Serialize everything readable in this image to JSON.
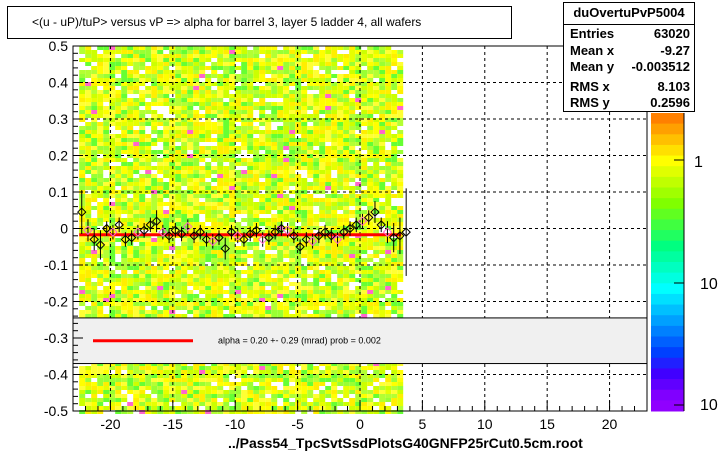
{
  "title": "<(u - uP)/tuP> versus  vP => alpha for barrel 3, layer 5 ladder 4, all wafers",
  "stats": {
    "name": "duOvertuPvP5004",
    "rows": [
      {
        "key": "Entries",
        "value": "63020"
      },
      {
        "key": "Mean x",
        "value": "-9.27"
      },
      {
        "key": "Mean y",
        "value": "-0.003512"
      },
      {
        "key": "RMS x",
        "value": "8.103"
      },
      {
        "key": "RMS y",
        "value": "0.2596"
      }
    ]
  },
  "footer": "../Pass54_TpcSvtSsdPlotsG40GNFP25rCut0.5cm.root",
  "colors": {
    "fit": "#ff0000",
    "profile": "#000000",
    "accent_pink": "#ff66cc"
  },
  "z_axis": {
    "labels": [
      "1",
      "10",
      "10"
    ],
    "scale": "log"
  },
  "chart_data": {
    "type": "heatmap",
    "title": "<(u - uP)/tuP> versus  vP => alpha for barrel 3, layer 5 ladder 4, all wafers",
    "xlabel": "",
    "ylabel": "",
    "xlim": [
      -23,
      23
    ],
    "ylim": [
      -0.5,
      0.5
    ],
    "x_ticks": [
      -20,
      -15,
      -10,
      -5,
      0,
      5,
      10,
      15,
      20
    ],
    "y_ticks": [
      -0.5,
      -0.4,
      -0.3,
      -0.2,
      -0.1,
      0,
      0.1,
      0.2,
      0.3,
      0.4,
      0.5
    ],
    "grid": true,
    "filled_x_range": [
      -22.5,
      3.3
    ],
    "legend": {
      "text": "alpha =     0.20 +-  0.29 (mrad) prob = 0.002",
      "y_range": [
        -0.37,
        -0.245
      ]
    },
    "fit_line": {
      "x": [
        -22.5,
        3.3
      ],
      "y": [
        -0.017,
        -0.017
      ]
    },
    "profile": {
      "x": [
        -22.3,
        -21.8,
        -21.3,
        -20.8,
        -20.3,
        -19.8,
        -19.3,
        -18.8,
        -18.3,
        -17.8,
        -17.3,
        -16.8,
        -16.3,
        -15.8,
        -15.3,
        -14.8,
        -14.3,
        -13.8,
        -13.3,
        -12.8,
        -12.3,
        -11.8,
        -11.3,
        -10.8,
        -10.3,
        -9.8,
        -9.3,
        -8.8,
        -8.3,
        -7.8,
        -7.3,
        -6.8,
        -6.3,
        -5.8,
        -5.3,
        -4.8,
        -4.3,
        -3.8,
        -3.3,
        -2.8,
        -2.3,
        -1.8,
        -1.3,
        -0.8,
        -0.3,
        0.2,
        0.7,
        1.2,
        1.7,
        2.2,
        2.7,
        3.2,
        3.7
      ],
      "y": [
        0.045,
        -0.005,
        -0.03,
        -0.045,
        0.0,
        -0.01,
        0.01,
        -0.03,
        -0.025,
        -0.01,
        -0.005,
        0.01,
        0.02,
        -0.01,
        -0.02,
        -0.005,
        -0.015,
        0.005,
        -0.02,
        -0.01,
        -0.03,
        -0.035,
        -0.025,
        -0.055,
        -0.01,
        -0.02,
        -0.03,
        -0.015,
        -0.005,
        -0.03,
        -0.025,
        -0.01,
        0.0,
        -0.005,
        -0.02,
        -0.05,
        -0.03,
        -0.035,
        -0.02,
        -0.01,
        -0.02,
        -0.03,
        -0.01,
        0.0,
        0.01,
        0.02,
        0.03,
        0.045,
        0.01,
        -0.01,
        -0.025,
        -0.02,
        -0.01
      ],
      "err": [
        0.06,
        0.03,
        0.03,
        0.04,
        0.02,
        0.02,
        0.02,
        0.02,
        0.02,
        0.02,
        0.02,
        0.02,
        0.03,
        0.02,
        0.02,
        0.02,
        0.02,
        0.02,
        0.02,
        0.02,
        0.02,
        0.02,
        0.02,
        0.03,
        0.02,
        0.02,
        0.02,
        0.02,
        0.02,
        0.02,
        0.02,
        0.02,
        0.02,
        0.02,
        0.02,
        0.02,
        0.02,
        0.02,
        0.02,
        0.02,
        0.02,
        0.02,
        0.02,
        0.02,
        0.02,
        0.02,
        0.02,
        0.03,
        0.02,
        0.03,
        0.04,
        0.05,
        0.12
      ]
    }
  }
}
